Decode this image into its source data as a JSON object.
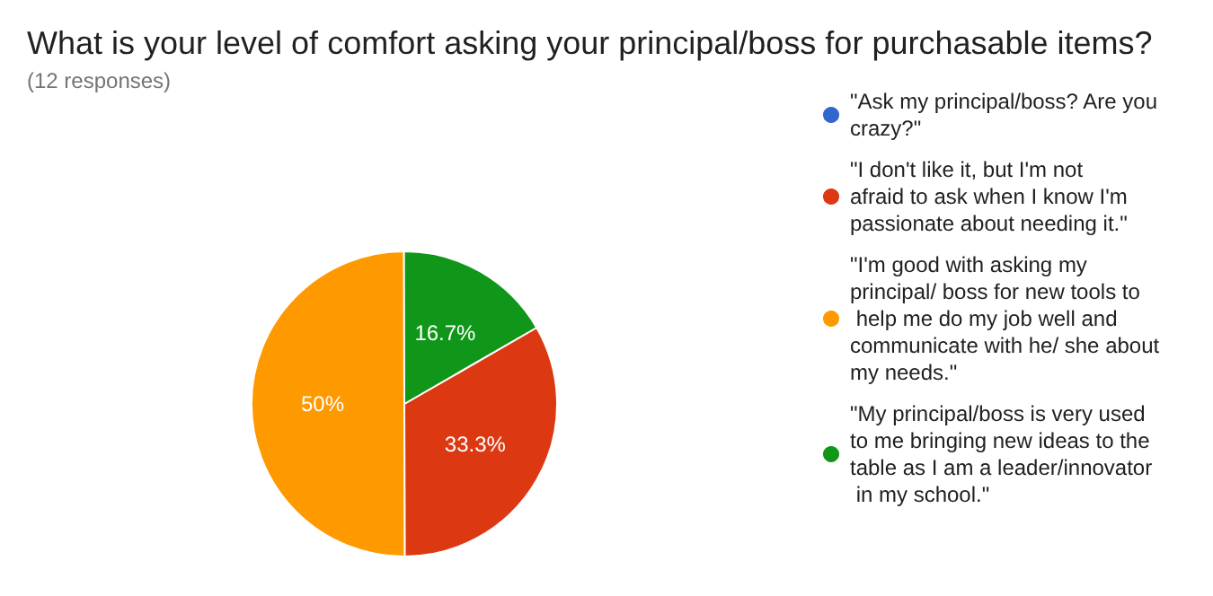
{
  "chart_data": {
    "type": "pie",
    "title": "What is your level of comfort asking your principal/boss for purchasable items?",
    "subtitle": "(12 responses)",
    "categories": [
      "\"Ask my principal/boss? Are you crazy?\"",
      "\"I don't like it, but I'm not afraid to ask when I know I'm passionate about needing it.\"",
      "\"I'm good with asking my principal/ boss for new tools to help me do my job well and communicate with he/ she about my needs.\"",
      "\"My principal/boss is very used to me bringing new ideas to the table as I am a leader/innovator in my school.\""
    ],
    "values": [
      0,
      33.3,
      50,
      16.7
    ],
    "colors": [
      "#3366cc",
      "#dc3912",
      "#ff9900",
      "#109618"
    ],
    "value_labels": [
      null,
      "33.3%",
      "50%",
      "16.7%"
    ],
    "legend": "right"
  }
}
